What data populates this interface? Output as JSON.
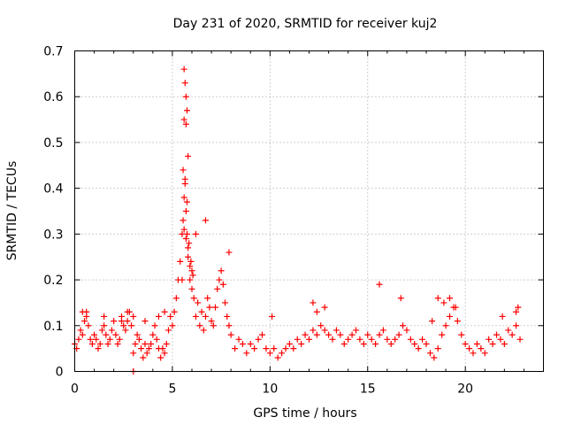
{
  "chart_data": {
    "type": "scatter",
    "title": "Day 231 of 2020, SRMTID for receiver kuj2",
    "xlabel": "GPS time / hours",
    "ylabel": "SRMTID / TECUs",
    "xlim": [
      0,
      24
    ],
    "ylim": [
      0,
      0.7
    ],
    "xticks": [
      0,
      5,
      10,
      15,
      20
    ],
    "yticks": [
      0,
      0.1,
      0.2,
      0.3,
      0.4,
      0.5,
      0.6,
      0.7
    ],
    "xtick_labels": [
      "0",
      "5",
      "10",
      "15",
      "20"
    ],
    "ytick_labels": [
      "0",
      "0.1",
      "0.2",
      "0.3",
      "0.4",
      "0.5",
      "0.6",
      "0.7"
    ],
    "grid": true,
    "marker": "+",
    "color": "#ff0000",
    "series": [
      {
        "name": "kuj2",
        "x": [
          0.0,
          0.1,
          0.2,
          0.3,
          0.4,
          0.5,
          0.6,
          0.7,
          0.8,
          0.9,
          1.0,
          1.1,
          1.2,
          1.3,
          1.4,
          1.5,
          1.6,
          1.7,
          1.8,
          1.9,
          2.0,
          2.1,
          2.2,
          2.3,
          2.4,
          2.5,
          2.6,
          2.7,
          2.8,
          2.9,
          3.0,
          3.1,
          3.2,
          3.3,
          3.4,
          3.5,
          3.6,
          3.7,
          3.8,
          3.9,
          4.0,
          4.1,
          4.2,
          4.3,
          4.4,
          4.5,
          4.6,
          4.7,
          4.8,
          4.9,
          5.0,
          5.1,
          5.2,
          5.3,
          5.4,
          5.5,
          5.55,
          5.6,
          5.65,
          5.7,
          5.75,
          5.8,
          5.85,
          5.9,
          5.95,
          6.0,
          6.1,
          6.2,
          6.3,
          6.4,
          6.5,
          6.6,
          6.7,
          6.8,
          6.9,
          7.0,
          7.1,
          7.2,
          7.3,
          7.4,
          7.5,
          7.6,
          7.7,
          7.8,
          7.9,
          8.0,
          8.2,
          8.4,
          8.6,
          8.8,
          9.0,
          9.2,
          9.4,
          9.6,
          9.8,
          10.0,
          10.2,
          10.4,
          10.6,
          10.8,
          11.0,
          11.2,
          11.4,
          11.6,
          11.8,
          12.0,
          12.2,
          12.4,
          12.6,
          12.8,
          13.0,
          13.2,
          13.4,
          13.6,
          13.8,
          14.0,
          14.2,
          14.4,
          14.6,
          14.8,
          15.0,
          15.2,
          15.4,
          15.6,
          15.8,
          16.0,
          16.2,
          16.4,
          16.6,
          16.8,
          17.0,
          17.2,
          17.4,
          17.6,
          17.8,
          18.0,
          18.2,
          18.4,
          18.6,
          18.8,
          19.0,
          19.2,
          19.4,
          19.6,
          19.8,
          20.0,
          20.2,
          20.4,
          20.6,
          20.8,
          21.0,
          21.2,
          21.4,
          21.6,
          21.8,
          22.0,
          22.2,
          22.4,
          22.6,
          22.8,
          5.6,
          5.65,
          5.7,
          5.75,
          5.6,
          5.7,
          5.8,
          5.55,
          5.65,
          5.75,
          6.7,
          6.2,
          7.9,
          5.8,
          5.7,
          5.9,
          6.0,
          5.6,
          5.5,
          6.05,
          0.4,
          0.6,
          1.5,
          2.4,
          2.7,
          3.0,
          3.6,
          4.3,
          4.6,
          12.2,
          12.4,
          12.8,
          15.6,
          16.7,
          18.6,
          18.9,
          19.2,
          19.5,
          21.9,
          22.6,
          22.7,
          3.0,
          10.1,
          18.3
        ],
        "y": [
          0.06,
          0.05,
          0.07,
          0.09,
          0.08,
          0.11,
          0.13,
          0.1,
          0.07,
          0.06,
          0.08,
          0.07,
          0.05,
          0.06,
          0.09,
          0.1,
          0.08,
          0.06,
          0.07,
          0.09,
          0.11,
          0.08,
          0.06,
          0.07,
          0.12,
          0.1,
          0.09,
          0.11,
          0.13,
          0.1,
          0.04,
          0.06,
          0.08,
          0.07,
          0.05,
          0.03,
          0.06,
          0.04,
          0.05,
          0.06,
          0.08,
          0.1,
          0.07,
          0.05,
          0.03,
          0.05,
          0.04,
          0.06,
          0.09,
          0.12,
          0.1,
          0.13,
          0.16,
          0.2,
          0.24,
          0.3,
          0.33,
          0.38,
          0.42,
          0.35,
          0.3,
          0.25,
          0.28,
          0.2,
          0.24,
          0.18,
          0.16,
          0.12,
          0.15,
          0.1,
          0.13,
          0.09,
          0.12,
          0.16,
          0.14,
          0.11,
          0.1,
          0.14,
          0.18,
          0.2,
          0.22,
          0.19,
          0.15,
          0.12,
          0.1,
          0.08,
          0.05,
          0.07,
          0.06,
          0.04,
          0.06,
          0.05,
          0.07,
          0.08,
          0.05,
          0.04,
          0.05,
          0.03,
          0.04,
          0.05,
          0.06,
          0.05,
          0.07,
          0.06,
          0.08,
          0.07,
          0.09,
          0.08,
          0.1,
          0.09,
          0.08,
          0.07,
          0.09,
          0.08,
          0.06,
          0.07,
          0.08,
          0.09,
          0.07,
          0.06,
          0.08,
          0.07,
          0.06,
          0.08,
          0.09,
          0.07,
          0.06,
          0.07,
          0.08,
          0.1,
          0.09,
          0.07,
          0.06,
          0.05,
          0.07,
          0.06,
          0.04,
          0.03,
          0.05,
          0.08,
          0.1,
          0.12,
          0.14,
          0.11,
          0.08,
          0.06,
          0.05,
          0.04,
          0.06,
          0.05,
          0.04,
          0.07,
          0.06,
          0.08,
          0.07,
          0.06,
          0.09,
          0.08,
          0.1,
          0.07,
          0.66,
          0.63,
          0.6,
          0.57,
          0.55,
          0.54,
          0.47,
          0.44,
          0.41,
          0.37,
          0.33,
          0.3,
          0.26,
          0.27,
          0.29,
          0.23,
          0.22,
          0.31,
          0.2,
          0.21,
          0.13,
          0.12,
          0.12,
          0.11,
          0.13,
          0.12,
          0.11,
          0.12,
          0.13,
          0.15,
          0.13,
          0.14,
          0.19,
          0.16,
          0.16,
          0.15,
          0.16,
          0.14,
          0.12,
          0.13,
          0.14,
          0.0,
          0.12,
          0.11
        ]
      }
    ]
  }
}
